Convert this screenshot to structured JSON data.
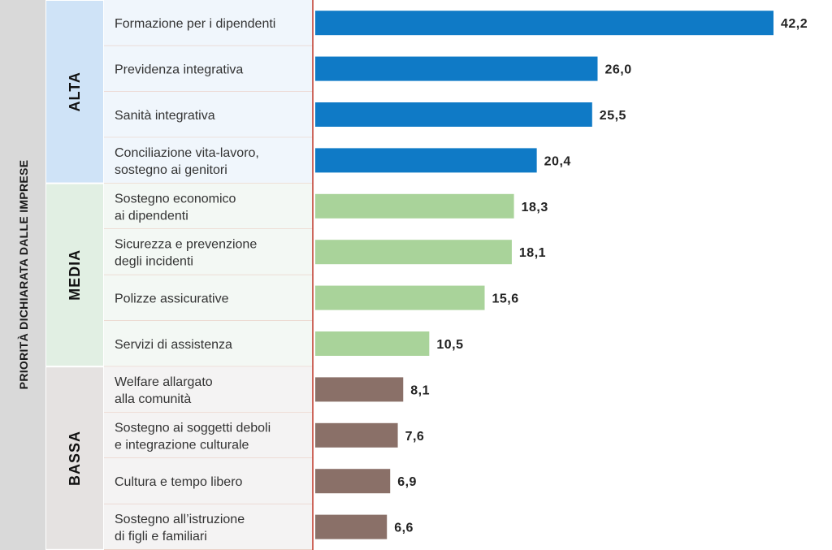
{
  "axis_title": "PRIORITÀ DICHIARATA DALLE IMPRESE",
  "groups": [
    {
      "label": "ALTA",
      "color": "#0f7ac6",
      "tint": "#cfe3f7",
      "rowbg": "#f0f6fc"
    },
    {
      "label": "MEDIA",
      "color": "#a9d39a",
      "tint": "#e1efe3",
      "rowbg": "#f3f8f4"
    },
    {
      "label": "BASSA",
      "color": "#8a7068",
      "tint": "#e5e2e1",
      "rowbg": "#f4f3f3"
    }
  ],
  "colors": {
    "left_strip": "#d9d9d9",
    "divider": "#c0392b",
    "row_line": "#e8c4b8"
  },
  "chart_data": {
    "type": "bar",
    "orientation": "horizontal",
    "categories": [
      "Formazione per i dipendenti",
      "Previdenza integrativa",
      "Sanità integrativa",
      "Conciliazione vita-lavoro,\nsostegno ai genitori",
      "Sostegno economico\nai dipendenti",
      "Sicurezza e prevenzione\ndegli incidenti",
      "Polizze assicurative",
      "Servizi di assistenza",
      "Welfare allargato\nalla comunità",
      "Sostegno ai soggetti deboli\ne integrazione culturale",
      "Cultura e tempo libero",
      "Sostegno all’istruzione\ndi figli e familiari"
    ],
    "values": [
      42.2,
      26.0,
      25.5,
      20.4,
      18.3,
      18.1,
      15.6,
      10.5,
      8.1,
      7.6,
      6.9,
      6.6
    ],
    "value_labels": [
      "42,2",
      "26,0",
      "25,5",
      "20,4",
      "18,3",
      "18,1",
      "15,6",
      "10,5",
      "8,1",
      "7,6",
      "6,9",
      "6,6"
    ],
    "group_of_row": [
      0,
      0,
      0,
      0,
      1,
      1,
      1,
      1,
      2,
      2,
      2,
      2
    ],
    "xlim": [
      0,
      42.2
    ]
  }
}
